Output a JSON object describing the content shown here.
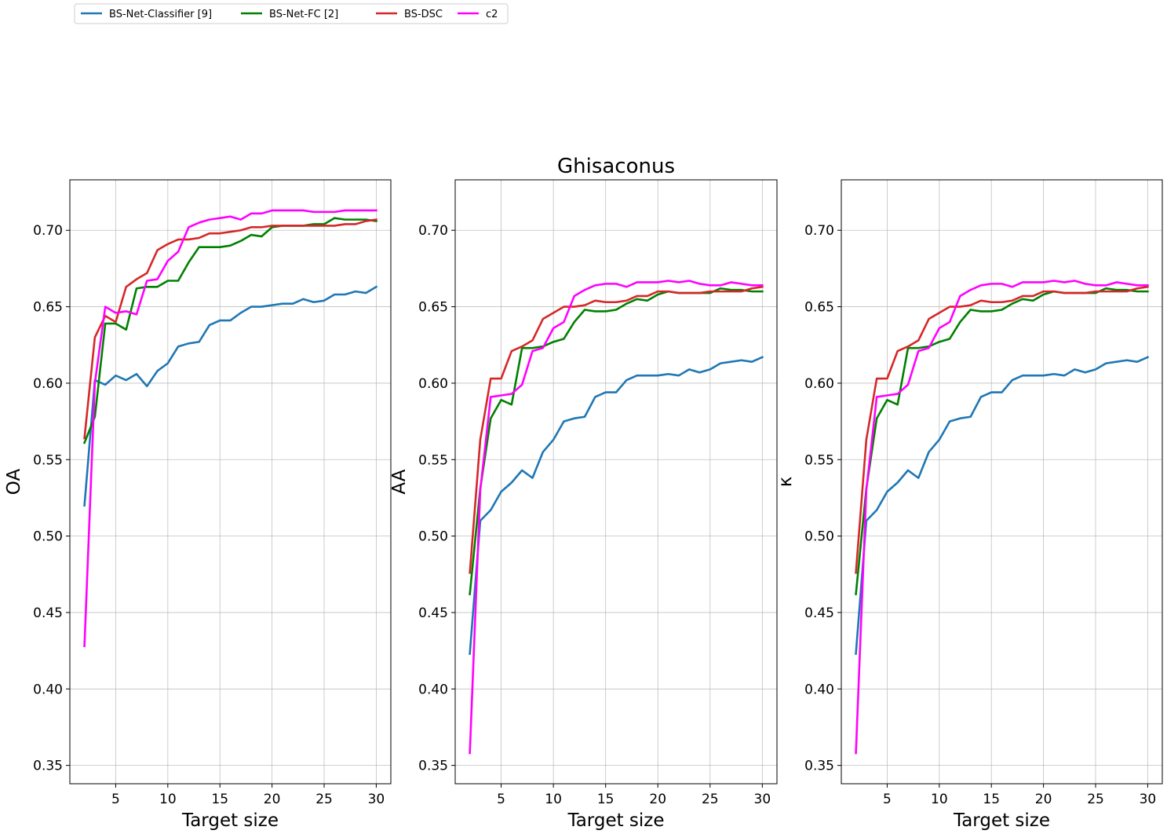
{
  "legend": {
    "placement": "top-left",
    "entries": [
      {
        "name": "BS-Net-Classifier [9]",
        "color": "#1f77b4"
      },
      {
        "name": "BS-Net-FC [2]",
        "color": "#008000"
      },
      {
        "name": "BS-DSC",
        "color": "#d62728"
      },
      {
        "name": "c2",
        "color": "#ff00ff"
      }
    ]
  },
  "chart_data": [
    {
      "type": "line",
      "title": "",
      "xlabel": "Target size",
      "ylabel": "OA",
      "xlim": [
        0.6,
        31.4
      ],
      "ylim": [
        0.338,
        0.733
      ],
      "xticks": [
        5,
        10,
        15,
        20,
        25,
        30
      ],
      "yticks": [
        0.35,
        0.4,
        0.45,
        0.5,
        0.55,
        0.6,
        0.65,
        0.7
      ],
      "grid": true,
      "x": [
        2,
        3,
        4,
        5,
        6,
        7,
        8,
        9,
        10,
        11,
        12,
        13,
        14,
        15,
        16,
        17,
        18,
        19,
        20,
        21,
        22,
        23,
        24,
        25,
        26,
        27,
        28,
        29,
        30
      ],
      "series": [
        {
          "name": "BS-Net-Classifier [9]",
          "color": "#1f77b4",
          "values": [
            0.52,
            0.602,
            0.599,
            0.605,
            0.602,
            0.606,
            0.598,
            0.608,
            0.613,
            0.624,
            0.626,
            0.627,
            0.638,
            0.641,
            0.641,
            0.646,
            0.65,
            0.65,
            0.651,
            0.652,
            0.652,
            0.655,
            0.653,
            0.654,
            0.658,
            0.658,
            0.66,
            0.659,
            0.663
          ]
        },
        {
          "name": "BS-Net-FC [2]",
          "color": "#008000",
          "values": [
            0.561,
            0.578,
            0.639,
            0.639,
            0.635,
            0.662,
            0.663,
            0.663,
            0.667,
            0.667,
            0.679,
            0.689,
            0.689,
            0.689,
            0.69,
            0.693,
            0.697,
            0.696,
            0.702,
            0.703,
            0.703,
            0.703,
            0.704,
            0.704,
            0.708,
            0.707,
            0.707,
            0.707,
            0.706
          ]
        },
        {
          "name": "BS-DSC",
          "color": "#d62728",
          "values": [
            0.564,
            0.63,
            0.644,
            0.64,
            0.663,
            0.668,
            0.672,
            0.687,
            0.691,
            0.694,
            0.694,
            0.695,
            0.698,
            0.698,
            0.699,
            0.7,
            0.702,
            0.702,
            0.703,
            0.703,
            0.703,
            0.703,
            0.703,
            0.703,
            0.703,
            0.704,
            0.704,
            0.706,
            0.707
          ]
        },
        {
          "name": "c2",
          "color": "#ff00ff",
          "values": [
            0.428,
            0.6,
            0.65,
            0.646,
            0.647,
            0.645,
            0.667,
            0.668,
            0.68,
            0.686,
            0.702,
            0.705,
            0.707,
            0.708,
            0.709,
            0.707,
            0.711,
            0.711,
            0.713,
            0.713,
            0.713,
            0.713,
            0.712,
            0.712,
            0.712,
            0.713,
            0.713,
            0.713,
            0.713
          ]
        }
      ]
    },
    {
      "type": "line",
      "title": "Ghisaconus",
      "xlabel": "Target size",
      "ylabel": "AA",
      "xlim": [
        0.6,
        31.4
      ],
      "ylim": [
        0.338,
        0.733
      ],
      "xticks": [
        5,
        10,
        15,
        20,
        25,
        30
      ],
      "yticks": [
        0.35,
        0.4,
        0.45,
        0.5,
        0.55,
        0.6,
        0.65,
        0.7
      ],
      "grid": true,
      "x": [
        2,
        3,
        4,
        5,
        6,
        7,
        8,
        9,
        10,
        11,
        12,
        13,
        14,
        15,
        16,
        17,
        18,
        19,
        20,
        21,
        22,
        23,
        24,
        25,
        26,
        27,
        28,
        29,
        30
      ],
      "series": [
        {
          "name": "BS-Net-Classifier [9]",
          "color": "#1f77b4",
          "values": [
            0.423,
            0.51,
            0.517,
            0.529,
            0.535,
            0.543,
            0.538,
            0.555,
            0.563,
            0.575,
            0.577,
            0.578,
            0.591,
            0.594,
            0.594,
            0.602,
            0.605,
            0.605,
            0.605,
            0.606,
            0.605,
            0.609,
            0.607,
            0.609,
            0.613,
            0.614,
            0.615,
            0.614,
            0.617
          ]
        },
        {
          "name": "BS-Net-FC [2]",
          "color": "#008000",
          "values": [
            0.462,
            0.531,
            0.577,
            0.589,
            0.586,
            0.623,
            0.623,
            0.624,
            0.627,
            0.629,
            0.64,
            0.648,
            0.647,
            0.647,
            0.648,
            0.652,
            0.655,
            0.654,
            0.658,
            0.66,
            0.659,
            0.659,
            0.659,
            0.659,
            0.662,
            0.661,
            0.661,
            0.66,
            0.66
          ]
        },
        {
          "name": "BS-DSC",
          "color": "#d62728",
          "values": [
            0.476,
            0.563,
            0.603,
            0.603,
            0.621,
            0.624,
            0.628,
            0.642,
            0.646,
            0.65,
            0.65,
            0.651,
            0.654,
            0.653,
            0.653,
            0.654,
            0.657,
            0.657,
            0.66,
            0.66,
            0.659,
            0.659,
            0.659,
            0.66,
            0.66,
            0.66,
            0.66,
            0.662,
            0.663
          ]
        },
        {
          "name": "c2",
          "color": "#ff00ff",
          "values": [
            0.358,
            0.53,
            0.591,
            0.592,
            0.593,
            0.599,
            0.621,
            0.623,
            0.636,
            0.64,
            0.657,
            0.661,
            0.664,
            0.665,
            0.665,
            0.663,
            0.666,
            0.666,
            0.666,
            0.667,
            0.666,
            0.667,
            0.665,
            0.664,
            0.664,
            0.666,
            0.665,
            0.664,
            0.664
          ]
        }
      ]
    },
    {
      "type": "line",
      "title": "",
      "xlabel": "Target size",
      "ylabel": "κ",
      "xlim": [
        0.6,
        31.4
      ],
      "ylim": [
        0.338,
        0.733
      ],
      "xticks": [
        5,
        10,
        15,
        20,
        25,
        30
      ],
      "yticks": [
        0.35,
        0.4,
        0.45,
        0.5,
        0.55,
        0.6,
        0.65,
        0.7
      ],
      "grid": true,
      "x": [
        2,
        3,
        4,
        5,
        6,
        7,
        8,
        9,
        10,
        11,
        12,
        13,
        14,
        15,
        16,
        17,
        18,
        19,
        20,
        21,
        22,
        23,
        24,
        25,
        26,
        27,
        28,
        29,
        30
      ],
      "series": [
        {
          "name": "BS-Net-Classifier [9]",
          "color": "#1f77b4",
          "values": [
            0.423,
            0.51,
            0.517,
            0.529,
            0.535,
            0.543,
            0.538,
            0.555,
            0.563,
            0.575,
            0.577,
            0.578,
            0.591,
            0.594,
            0.594,
            0.602,
            0.605,
            0.605,
            0.605,
            0.606,
            0.605,
            0.609,
            0.607,
            0.609,
            0.613,
            0.614,
            0.615,
            0.614,
            0.617
          ]
        },
        {
          "name": "BS-Net-FC [2]",
          "color": "#008000",
          "values": [
            0.462,
            0.531,
            0.577,
            0.589,
            0.586,
            0.623,
            0.623,
            0.624,
            0.627,
            0.629,
            0.64,
            0.648,
            0.647,
            0.647,
            0.648,
            0.652,
            0.655,
            0.654,
            0.658,
            0.66,
            0.659,
            0.659,
            0.659,
            0.659,
            0.662,
            0.661,
            0.661,
            0.66,
            0.66
          ]
        },
        {
          "name": "BS-DSC",
          "color": "#d62728",
          "values": [
            0.476,
            0.563,
            0.603,
            0.603,
            0.621,
            0.624,
            0.628,
            0.642,
            0.646,
            0.65,
            0.65,
            0.651,
            0.654,
            0.653,
            0.653,
            0.654,
            0.657,
            0.657,
            0.66,
            0.66,
            0.659,
            0.659,
            0.659,
            0.66,
            0.66,
            0.66,
            0.66,
            0.662,
            0.663
          ]
        },
        {
          "name": "c2",
          "color": "#ff00ff",
          "values": [
            0.358,
            0.53,
            0.591,
            0.592,
            0.593,
            0.599,
            0.621,
            0.623,
            0.636,
            0.64,
            0.657,
            0.661,
            0.664,
            0.665,
            0.665,
            0.663,
            0.666,
            0.666,
            0.666,
            0.667,
            0.666,
            0.667,
            0.665,
            0.664,
            0.664,
            0.666,
            0.665,
            0.664,
            0.664
          ]
        }
      ]
    }
  ]
}
